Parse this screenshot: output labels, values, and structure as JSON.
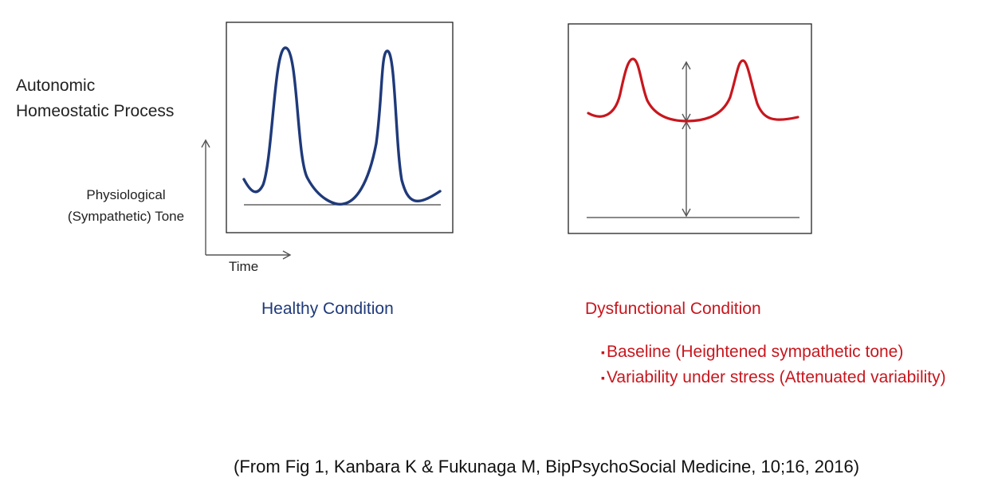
{
  "title_lines": [
    "Autonomic",
    "Homeostatic Process"
  ],
  "axes": {
    "y_label_lines": [
      "Physiological",
      "(Sympathetic) Tone"
    ],
    "x_label": "Time"
  },
  "panels": {
    "healthy": {
      "caption": "Healthy Condition",
      "color": "#1f3a7a"
    },
    "dysfunctional": {
      "caption": "Dysfunctional Condition",
      "color": "#c8161d",
      "notes": [
        "Baseline (Heightened sympathetic tone)",
        "Variability under stress (Attenuated variability)"
      ],
      "bullet": "▪"
    }
  },
  "citation": "(From Fig 1, Kanbara K & Fukunaga M, BipPsychoSocial Medicine, 10;16, 2016)"
}
